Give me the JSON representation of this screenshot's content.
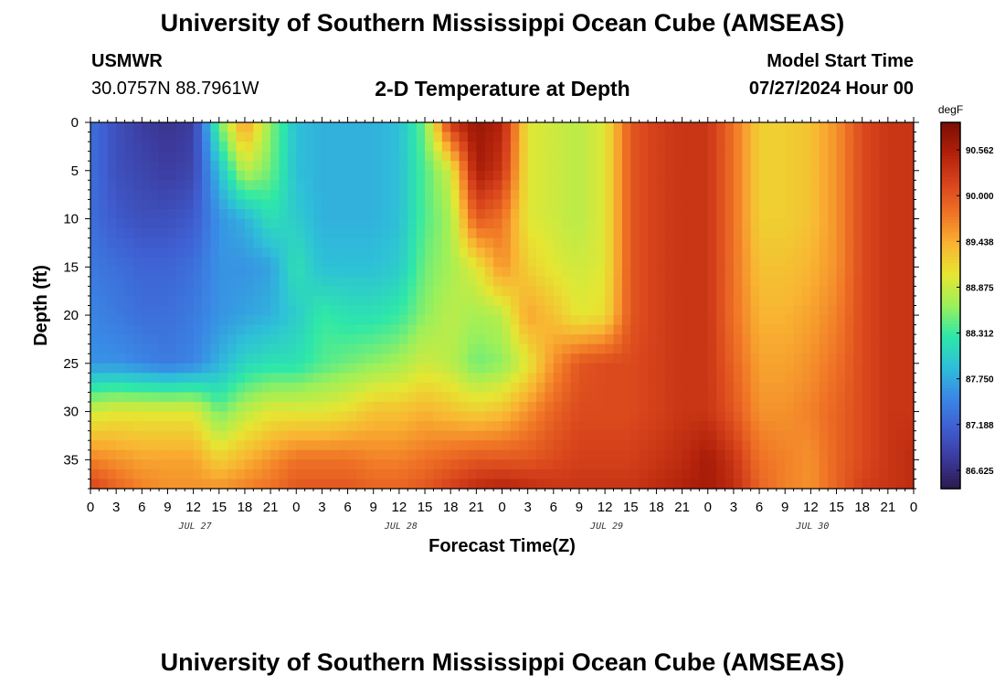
{
  "page": {
    "title": "University of Southern Mississippi Ocean Cube (AMSEAS)",
    "station": "USMWR",
    "coordinates": "30.0757N  88.7961W",
    "subtitle": "2-D Temperature at Depth",
    "model_start_label": "Model Start Time",
    "model_start_value": "07/27/2024 Hour 00",
    "footer_title": "University of Southern Mississippi Ocean Cube (AMSEAS)"
  },
  "chart_data": {
    "type": "heatmap",
    "title": "2-D Temperature at Depth",
    "xlabel": "Forecast Time(Z)",
    "ylabel": "Depth (ft)",
    "x_unit": "hours since model start",
    "xlim": [
      0,
      96
    ],
    "ylim": [
      0,
      38
    ],
    "y_inverted": true,
    "x_tick_labels": [
      "0",
      "3",
      "6",
      "9",
      "12",
      "15",
      "18",
      "21",
      "0",
      "3",
      "6",
      "9",
      "12",
      "15",
      "18",
      "21",
      "0",
      "3",
      "6",
      "9",
      "12",
      "15",
      "18",
      "21",
      "0",
      "3",
      "6",
      "9",
      "12",
      "15",
      "18",
      "21",
      "0"
    ],
    "date_labels": [
      {
        "text": "JUL 27",
        "hour": 12
      },
      {
        "text": "JUL 28",
        "hour": 36
      },
      {
        "text": "JUL 29",
        "hour": 60
      },
      {
        "text": "JUL 30",
        "hour": 84
      }
    ],
    "y_ticks": [
      0,
      5,
      10,
      15,
      20,
      25,
      30,
      35
    ],
    "colorbar": {
      "unit": "degF",
      "min": 86.4,
      "max": 90.9,
      "tick_values": [
        86.625,
        87.188,
        87.75,
        88.312,
        88.875,
        89.438,
        90.0,
        90.562
      ],
      "tick_labels": [
        "86.625",
        "87.188",
        "87.750",
        "88.312",
        "88.875",
        "89.438",
        "90.000",
        "90.562"
      ],
      "colors": [
        "#2b1a4e",
        "#3c3a9c",
        "#3f5fd2",
        "#3a88e6",
        "#2ec0d8",
        "#2ee8a8",
        "#9cf05a",
        "#e6e632",
        "#f9b432",
        "#f07426",
        "#d8441c",
        "#b0200a",
        "#7a0e04"
      ]
    },
    "grid": false,
    "data": {
      "x_hours": [
        0,
        3,
        6,
        9,
        12,
        15,
        18,
        21,
        24,
        27,
        30,
        33,
        36,
        39,
        42,
        45,
        48,
        51,
        54,
        57,
        60,
        63,
        66,
        69,
        72,
        75,
        78,
        81,
        84,
        87,
        90,
        93,
        96
      ],
      "depth_ft": [
        0,
        5,
        10,
        15,
        20,
        25,
        30,
        35,
        38
      ],
      "temperature_degF": [
        [
          87.3,
          87.0,
          86.8,
          86.7,
          86.8,
          88.5,
          89.6,
          88.6,
          87.9,
          87.8,
          87.8,
          87.8,
          87.9,
          88.5,
          90.3,
          90.7,
          90.5,
          89.0,
          88.9,
          88.8,
          89.0,
          90.0,
          90.2,
          90.3,
          90.3,
          89.8,
          89.2,
          89.2,
          89.3,
          89.6,
          90.1,
          90.3,
          90.3
        ],
        [
          87.3,
          87.0,
          86.9,
          86.8,
          86.9,
          87.9,
          88.8,
          88.5,
          87.9,
          87.8,
          87.8,
          87.8,
          87.9,
          88.4,
          88.9,
          90.6,
          90.3,
          89.0,
          88.9,
          88.8,
          89.0,
          90.0,
          90.2,
          90.3,
          90.3,
          89.8,
          89.2,
          89.2,
          89.3,
          89.6,
          90.1,
          90.3,
          90.3
        ],
        [
          87.3,
          87.1,
          87.0,
          87.0,
          87.1,
          87.6,
          87.8,
          88.2,
          88.0,
          87.8,
          87.8,
          87.8,
          87.9,
          88.4,
          88.7,
          90.0,
          89.8,
          89.0,
          88.9,
          88.8,
          89.0,
          90.0,
          90.2,
          90.3,
          90.3,
          89.8,
          89.2,
          89.2,
          89.3,
          89.6,
          90.1,
          90.3,
          90.3
        ],
        [
          87.4,
          87.3,
          87.2,
          87.2,
          87.3,
          87.6,
          87.6,
          87.7,
          88.2,
          87.9,
          87.9,
          87.9,
          88.0,
          88.5,
          88.7,
          89.0,
          89.6,
          89.2,
          89.0,
          88.9,
          89.0,
          90.0,
          90.2,
          90.3,
          90.3,
          89.8,
          89.3,
          89.3,
          89.4,
          89.6,
          90.1,
          90.3,
          90.3
        ],
        [
          87.5,
          87.4,
          87.3,
          87.3,
          87.4,
          87.6,
          87.7,
          87.8,
          88.0,
          88.3,
          88.2,
          88.2,
          88.3,
          88.6,
          88.8,
          88.7,
          88.8,
          89.5,
          89.3,
          89.0,
          89.1,
          90.0,
          90.2,
          90.3,
          90.3,
          89.8,
          89.4,
          89.4,
          89.5,
          89.7,
          90.1,
          90.3,
          90.3
        ],
        [
          87.6,
          87.6,
          87.5,
          87.4,
          87.5,
          87.8,
          88.1,
          88.2,
          88.2,
          88.4,
          88.5,
          88.6,
          88.7,
          88.9,
          88.8,
          88.5,
          88.6,
          89.0,
          89.6,
          90.0,
          90.1,
          90.1,
          90.2,
          90.3,
          90.3,
          89.9,
          89.5,
          89.5,
          89.6,
          89.8,
          90.1,
          90.3,
          90.3
        ],
        [
          88.9,
          89.0,
          89.0,
          89.0,
          89.0,
          88.5,
          88.8,
          89.0,
          89.0,
          89.0,
          89.1,
          89.3,
          89.3,
          89.4,
          89.3,
          89.2,
          89.3,
          89.6,
          89.9,
          90.1,
          90.1,
          90.1,
          90.2,
          90.3,
          90.3,
          90.0,
          89.6,
          89.6,
          89.7,
          89.9,
          90.1,
          90.3,
          90.3
        ],
        [
          89.7,
          89.6,
          89.5,
          89.5,
          89.5,
          89.2,
          89.4,
          89.6,
          89.8,
          89.8,
          89.8,
          89.7,
          89.7,
          89.8,
          89.9,
          90.0,
          90.0,
          90.0,
          90.1,
          90.2,
          90.2,
          90.2,
          90.3,
          90.4,
          90.6,
          90.3,
          89.8,
          89.7,
          89.6,
          89.9,
          90.1,
          90.3,
          90.4
        ],
        [
          90.2,
          89.9,
          89.7,
          89.6,
          89.6,
          89.6,
          89.7,
          89.8,
          90.0,
          90.0,
          90.0,
          89.9,
          89.9,
          90.0,
          90.2,
          90.4,
          90.5,
          90.4,
          90.3,
          90.3,
          90.3,
          90.3,
          90.4,
          90.5,
          90.6,
          90.4,
          89.9,
          89.7,
          89.6,
          89.9,
          90.2,
          90.3,
          90.4
        ]
      ]
    }
  }
}
